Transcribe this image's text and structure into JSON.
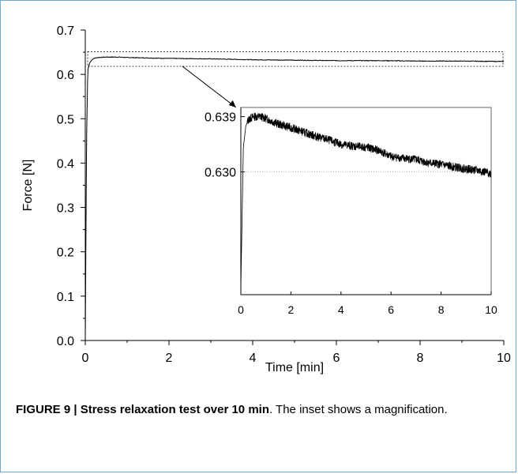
{
  "chart_data": [
    {
      "type": "line",
      "xlabel": "Time [min]",
      "ylabel": "Force [N]",
      "xlim": [
        0,
        10
      ],
      "ylim": [
        0,
        0.7
      ],
      "xticks": [
        "0",
        "2",
        "4",
        "6",
        "8",
        "10"
      ],
      "yticks": [
        "0.0",
        "0.1",
        "0.2",
        "0.3",
        "0.4",
        "0.5",
        "0.6",
        "0.7"
      ],
      "grid": false,
      "series": [
        {
          "x": [
            0,
            0.03,
            0.06,
            0.1,
            0.15,
            0.2,
            0.3,
            0.5,
            0.8,
            1,
            2,
            3,
            4,
            5,
            6,
            7,
            8,
            9,
            10
          ],
          "values": [
            0.0,
            0.45,
            0.61,
            0.625,
            0.632,
            0.636,
            0.638,
            0.639,
            0.639,
            0.638,
            0.636,
            0.635,
            0.633,
            0.632,
            0.631,
            0.631,
            0.63,
            0.63,
            0.629
          ]
        }
      ]
    },
    {
      "type": "line",
      "role": "inset",
      "xlim": [
        0,
        10
      ],
      "xticks": [
        "0",
        "2",
        "4",
        "6",
        "8",
        "10"
      ],
      "yticks": [
        "0.639",
        "0.630"
      ],
      "reference_line": 0.63,
      "series": [
        {
          "x": [
            0,
            0.1,
            0.2,
            0.3,
            0.5,
            0.8,
            1,
            1.5,
            2,
            2.5,
            3,
            3.5,
            4,
            4.5,
            5,
            5.5,
            6,
            6.5,
            7,
            7.5,
            8,
            8.5,
            9,
            9.5,
            10
          ],
          "values": [
            0.611,
            0.634,
            0.6375,
            0.6385,
            0.639,
            0.639,
            0.6387,
            0.6378,
            0.6372,
            0.6365,
            0.6358,
            0.6352,
            0.6345,
            0.6342,
            0.634,
            0.6335,
            0.6325,
            0.6322,
            0.632,
            0.6315,
            0.6312,
            0.6308,
            0.6305,
            0.6302,
            0.6297
          ]
        }
      ]
    }
  ],
  "caption": {
    "bold": "FIGURE 9 | Stress relaxation test over 10 min",
    "rest": ". The inset shows a magnification."
  },
  "colors": {
    "line": "#000000",
    "frame": "#6fa8d6",
    "reference": "#999999"
  }
}
